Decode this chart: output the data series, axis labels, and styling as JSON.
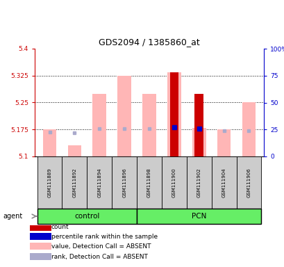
{
  "title": "GDS2094 / 1385860_at",
  "samples": [
    "GSM111889",
    "GSM111892",
    "GSM111894",
    "GSM111896",
    "GSM111898",
    "GSM111900",
    "GSM111902",
    "GSM111904",
    "GSM111906"
  ],
  "ylim_left": [
    5.1,
    5.4
  ],
  "ylim_right": [
    0,
    100
  ],
  "yticks_left": [
    5.1,
    5.175,
    5.25,
    5.325,
    5.4
  ],
  "yticks_right": [
    0,
    25,
    50,
    75,
    100
  ],
  "ytick_labels_left": [
    "5.1",
    "5.175",
    "5.25",
    "5.325",
    "5.4"
  ],
  "ytick_labels_right": [
    "0",
    "25",
    "50",
    "75",
    "100%"
  ],
  "grid_lines": [
    5.175,
    5.25,
    5.325
  ],
  "bar_bottom": 5.1,
  "pink_bars": {
    "values": [
      5.175,
      5.13,
      5.275,
      5.325,
      5.275,
      5.335,
      5.18,
      5.175,
      5.25
    ],
    "color": "#ffb6b6"
  },
  "red_bars": {
    "indices": [
      5,
      6
    ],
    "values": [
      5.335,
      5.275
    ],
    "color": "#cc0000"
  },
  "blue_squares": {
    "indices": [
      5,
      6
    ],
    "values": [
      5.182,
      5.178
    ],
    "color": "#0000cc"
  },
  "light_blue_squares": {
    "indices": [
      0,
      1,
      2,
      3,
      4,
      7,
      8
    ],
    "values": [
      5.168,
      5.165,
      5.178,
      5.178,
      5.178,
      5.172,
      5.172
    ],
    "color": "#aaaacc"
  },
  "group_bar_color": "#66ee66",
  "group_bar_edge": "#000000",
  "sample_box_color": "#cccccc",
  "ylabel_left_color": "#cc0000",
  "ylabel_right_color": "#0000cc",
  "legend_items": [
    {
      "color": "#cc0000",
      "label": "count"
    },
    {
      "color": "#0000cc",
      "label": "percentile rank within the sample"
    },
    {
      "color": "#ffb6b6",
      "label": "value, Detection Call = ABSENT"
    },
    {
      "color": "#aaaacc",
      "label": "rank, Detection Call = ABSENT"
    }
  ],
  "agent_label": "agent",
  "control_label": "control",
  "pcn_label": "PCN",
  "bar_width": 0.55,
  "red_bar_width": 0.35
}
